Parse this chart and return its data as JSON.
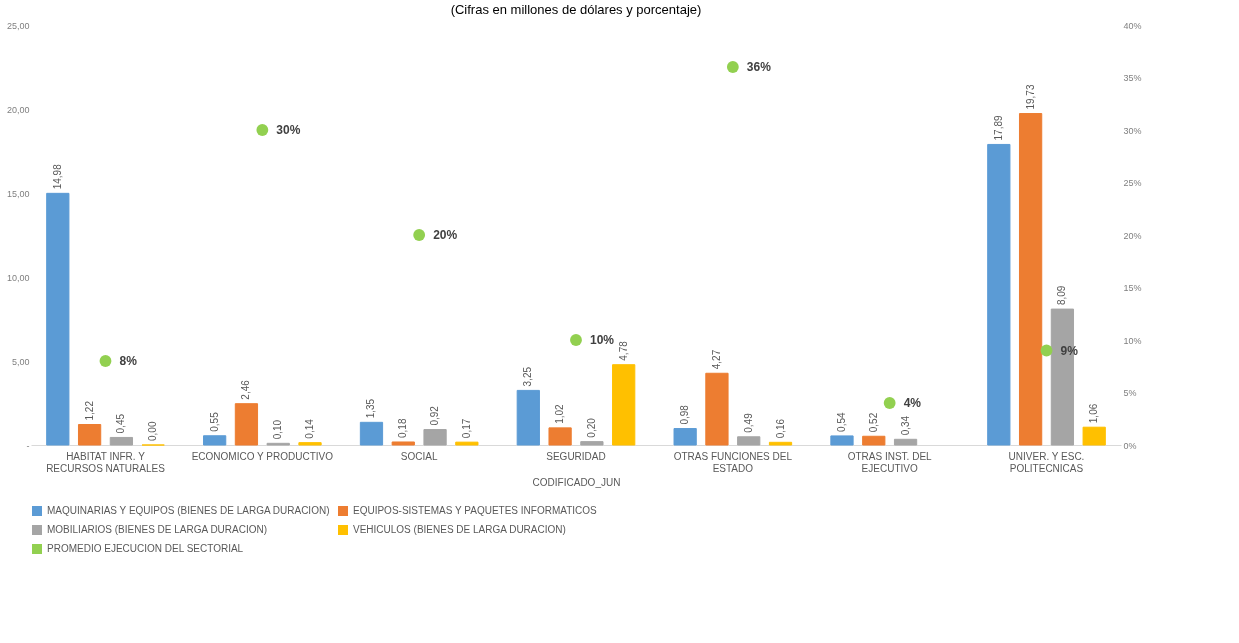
{
  "chart_data": {
    "type": "bar",
    "title": "(Cifras en millones de dólares y porcentaje)",
    "xlabel": "CODIFICADO_JUN",
    "categories": [
      "HABITAT INFR. Y RECURSOS NATURALES",
      "ECONOMICO Y PRODUCTIVO",
      "SOCIAL",
      "SEGURIDAD",
      "OTRAS FUNCIONES DEL ESTADO",
      "OTRAS INST. DEL EJECUTIVO",
      "UNIVER. Y ESC. POLITECNICAS"
    ],
    "series": [
      {
        "name": "MAQUINARIAS Y EQUIPOS (BIENES DE LARGA DURACION)",
        "color": "#5b9bd5",
        "values": [
          14.98,
          0.55,
          1.35,
          3.25,
          0.98,
          0.54,
          17.89
        ],
        "value_labels": [
          "14,98",
          "0,55",
          "1,35",
          "3,25",
          "0,98",
          "0,54",
          "17,89"
        ]
      },
      {
        "name": "EQUIPOS-SISTEMAS Y PAQUETES INFORMATICOS",
        "color": "#ed7d31",
        "values": [
          1.22,
          2.46,
          0.18,
          1.02,
          4.27,
          0.52,
          19.73
        ],
        "value_labels": [
          "1,22",
          "2,46",
          "0,18",
          "1,02",
          "4,27",
          "0,52",
          "19,73"
        ]
      },
      {
        "name": "MOBILIARIOS (BIENES DE LARGA DURACION)",
        "color": "#a5a5a5",
        "values": [
          0.45,
          0.1,
          0.92,
          0.2,
          0.49,
          0.34,
          8.09
        ],
        "value_labels": [
          "0,45",
          "0,10",
          "0,92",
          "0,20",
          "0,49",
          "0,34",
          "8,09"
        ]
      },
      {
        "name": "VEHICULOS (BIENES DE LARGA DURACION)",
        "color": "#ffc000",
        "values": [
          0.0,
          0.14,
          0.17,
          4.78,
          0.16,
          null,
          1.06
        ],
        "value_labels": [
          "0,00",
          "0,14",
          "0,17",
          "4,78",
          "0,16",
          null,
          "1,06"
        ]
      },
      {
        "name": "PROMEDIO EJECUCION DEL SECTORIAL",
        "type": "scatter",
        "axis": "y2",
        "color": "#92d050",
        "values": [
          8,
          30,
          20,
          10,
          36,
          4,
          9
        ],
        "value_labels": [
          "8%",
          "30%",
          "20%",
          "10%",
          "36%",
          "4%",
          "9%"
        ]
      }
    ],
    "ylim": [
      0,
      25
    ],
    "yticks": [
      {
        "value": 0,
        "label": "-"
      },
      {
        "value": 5,
        "label": "5,00"
      },
      {
        "value": 10,
        "label": "10,00"
      },
      {
        "value": 15,
        "label": "15,00"
      },
      {
        "value": 20,
        "label": "20,00"
      },
      {
        "value": 25,
        "label": "25,00"
      }
    ],
    "y2lim": [
      0,
      40
    ],
    "y2ticks": [
      {
        "value": 0,
        "label": "0%"
      },
      {
        "value": 5,
        "label": "5%"
      },
      {
        "value": 10,
        "label": "10%"
      },
      {
        "value": 15,
        "label": "15%"
      },
      {
        "value": 20,
        "label": "20%"
      },
      {
        "value": 25,
        "label": "25%"
      },
      {
        "value": 30,
        "label": "30%"
      },
      {
        "value": 35,
        "label": "35%"
      },
      {
        "value": 40,
        "label": "40%"
      }
    ],
    "grid": false,
    "legend": "bottom",
    "marker": "circle"
  }
}
